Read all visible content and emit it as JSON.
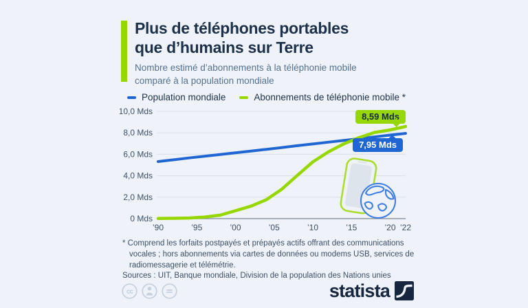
{
  "page": {
    "background": "#eff3f9"
  },
  "header": {
    "accent_color": "#97d700",
    "title_lines": [
      "Plus de téléphones portables",
      "que d’humains sur Terre"
    ],
    "subtitle_lines": [
      "Nombre estimé d’abonnements à la téléphonie mobile",
      "comparé à la population mondiale"
    ]
  },
  "legend": {
    "items": [
      {
        "label": "Population mondiale",
        "color": "#2066d2"
      },
      {
        "label": "Abonnements de téléphonie mobile *",
        "color": "#97d700"
      }
    ]
  },
  "chart_data": {
    "type": "line",
    "title": "Nombre estimé d’abonnements à la téléphonie mobile comparé à la population mondiale",
    "unit": "Mds (milliards)",
    "x": [
      1990,
      1992,
      1994,
      1996,
      1998,
      2000,
      2002,
      2004,
      2006,
      2008,
      2010,
      2012,
      2014,
      2016,
      2018,
      2020,
      2022
    ],
    "series": [
      {
        "name": "Population mondiale",
        "color": "#2066d2",
        "stroke_width": 4,
        "values": [
          5.32,
          5.49,
          5.66,
          5.82,
          5.98,
          6.14,
          6.3,
          6.46,
          6.63,
          6.8,
          6.96,
          7.13,
          7.29,
          7.46,
          7.62,
          7.79,
          7.95
        ],
        "end_label": "7,95 Mds"
      },
      {
        "name": "Abonnements de téléphonie mobile",
        "color": "#97d700",
        "stroke_width": 4.5,
        "values": [
          0.01,
          0.03,
          0.06,
          0.15,
          0.32,
          0.74,
          1.16,
          1.77,
          2.75,
          4.03,
          5.29,
          6.22,
          6.97,
          7.56,
          8.04,
          8.27,
          8.59
        ],
        "end_label": "8,59 Mds"
      }
    ],
    "xlim": [
      1990,
      2022
    ],
    "ylim": [
      0,
      10
    ],
    "y_ticks": [
      {
        "value": 0,
        "label": "0 Mds"
      },
      {
        "value": 2,
        "label": "2,0 Mds"
      },
      {
        "value": 4,
        "label": "4,0 Mds"
      },
      {
        "value": 6,
        "label": "6,0 Mds"
      },
      {
        "value": 8,
        "label": "8,0 Mds"
      },
      {
        "value": 10,
        "label": "10,0 Mds"
      }
    ],
    "x_ticks": [
      {
        "value": 1990,
        "label": "’90"
      },
      {
        "value": 1995,
        "label": "’95"
      },
      {
        "value": 2000,
        "label": "’00"
      },
      {
        "value": 2005,
        "label": "’05"
      },
      {
        "value": 2010,
        "label": "’10"
      },
      {
        "value": 2015,
        "label": "’15"
      },
      {
        "value": 2020,
        "label": "’20"
      },
      {
        "value": 2022,
        "label": "’22"
      }
    ],
    "grid_on": true,
    "legend_position": "top",
    "grid_color": "#d9dfe8",
    "axis_color": "#8d97a5",
    "tick_color": "#3c4f66"
  },
  "badges": {
    "mobile": {
      "text": "8,59 Mds",
      "bg": "#97d700",
      "text_color": "#16283f"
    },
    "population": {
      "text": "7,95 Mds",
      "bg": "#2066d2",
      "text_color": "#ffffff"
    }
  },
  "footnote": {
    "lines": [
      "* Comprend les forfaits postpayés et prépayés actifs offrant des communications",
      "vocales ; hors abonnements via cartes de données ou modems USB, services de",
      "radiomessagerie et télémétrie."
    ]
  },
  "sources": "Sources : UIT, Banque mondiale, Division de la population des Nations unies",
  "license": {
    "icons": [
      "cc",
      "by",
      "nd"
    ]
  },
  "branding": {
    "wordmark": "statista",
    "logo_color": "#16263e"
  }
}
